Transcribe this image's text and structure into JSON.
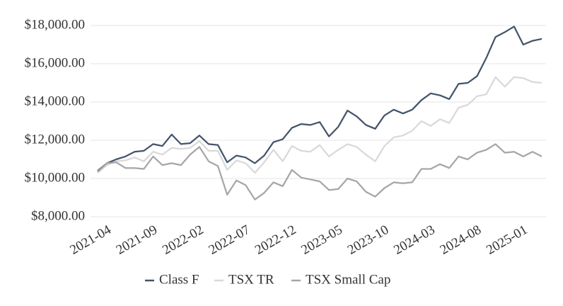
{
  "chart_data": {
    "type": "line",
    "categories": [
      "2021-04",
      null,
      null,
      null,
      null,
      "2021-09",
      null,
      null,
      null,
      null,
      "2022-02",
      null,
      null,
      null,
      null,
      "2022-07",
      null,
      null,
      null,
      null,
      "2022-12",
      null,
      null,
      null,
      null,
      "2023-05",
      null,
      null,
      null,
      null,
      "2023-10",
      null,
      null,
      null,
      null,
      "2024-03",
      null,
      null,
      null,
      null,
      "2024-08",
      null,
      null,
      null,
      null,
      "2025-01",
      null,
      null,
      null
    ],
    "series": [
      {
        "name": "Class F",
        "color": "#44546a",
        "values": [
          10400,
          10800,
          11000,
          11150,
          11400,
          11450,
          11800,
          11700,
          12300,
          11800,
          11850,
          12250,
          11800,
          11750,
          10850,
          11200,
          11100,
          10800,
          11200,
          11900,
          12050,
          12650,
          12850,
          12800,
          12950,
          12200,
          12700,
          13550,
          13250,
          12800,
          12600,
          13300,
          13600,
          13400,
          13600,
          14100,
          14450,
          14350,
          14150,
          14950,
          15000,
          15350,
          16300,
          17400,
          17650,
          17950,
          17000,
          17200,
          17300
        ]
      },
      {
        "name": "TSX TR",
        "color": "#d9d9d9",
        "values": [
          10300,
          10700,
          10900,
          10950,
          11100,
          10900,
          11400,
          11250,
          11600,
          11550,
          11600,
          11950,
          11450,
          11450,
          10450,
          10950,
          10800,
          10300,
          10850,
          11500,
          10900,
          11700,
          11450,
          11400,
          11750,
          11150,
          11500,
          11800,
          11650,
          11250,
          10900,
          11700,
          12150,
          12250,
          12500,
          13000,
          12750,
          13100,
          12900,
          13700,
          13850,
          14300,
          14400,
          15300,
          14800,
          15300,
          15250,
          15050,
          15000
        ]
      },
      {
        "name": "TSX Small Cap",
        "color": "#a6a6a6",
        "values": [
          10350,
          10800,
          10850,
          10550,
          10550,
          10500,
          11150,
          10700,
          10800,
          10700,
          11250,
          11650,
          10900,
          10650,
          9150,
          9900,
          9650,
          8900,
          9250,
          9800,
          9600,
          10450,
          10050,
          9950,
          9850,
          9400,
          9450,
          10000,
          9850,
          9300,
          9050,
          9500,
          9800,
          9750,
          9800,
          10500,
          10500,
          10750,
          10550,
          11150,
          11000,
          11350,
          11500,
          11800,
          11350,
          11400,
          11150,
          11400,
          11150
        ]
      }
    ],
    "ylim": [
      8000,
      18000
    ],
    "yticks": [
      {
        "value": 8000,
        "label": "$8,000.00"
      },
      {
        "value": 10000,
        "label": "$10,000.00"
      },
      {
        "value": 12000,
        "label": "$12,000.00"
      },
      {
        "value": 14000,
        "label": "$14,000.00"
      },
      {
        "value": 16000,
        "label": "$16,000.00"
      },
      {
        "value": 18000,
        "label": "$18,000.00"
      }
    ],
    "grid": true,
    "legend": "bottom"
  }
}
